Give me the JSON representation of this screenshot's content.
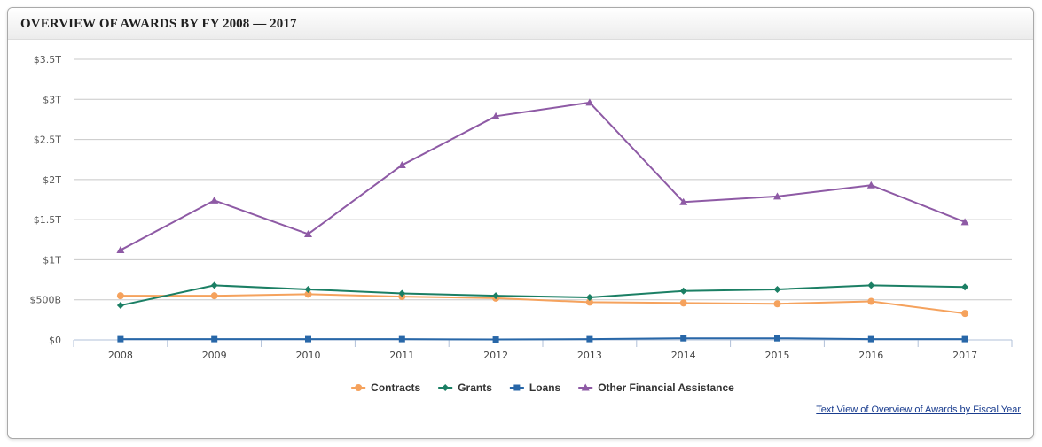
{
  "header": {
    "title": "OVERVIEW OF AWARDS BY FY 2008 — 2017"
  },
  "links": {
    "text_view": "Text View of Overview of Awards by Fiscal Year"
  },
  "chart_data": {
    "type": "line",
    "title": "",
    "xlabel": "",
    "ylabel": "",
    "categories": [
      "2008",
      "2009",
      "2010",
      "2011",
      "2012",
      "2013",
      "2014",
      "2015",
      "2016",
      "2017"
    ],
    "ylim": [
      0,
      3.5
    ],
    "y_unit": "trillions of dollars",
    "y_ticks": [
      {
        "value": 0,
        "label": "$0"
      },
      {
        "value": 0.5,
        "label": "$500B"
      },
      {
        "value": 1,
        "label": "$1T"
      },
      {
        "value": 1.5,
        "label": "$1.5T"
      },
      {
        "value": 2,
        "label": "$2T"
      },
      {
        "value": 2.5,
        "label": "$2.5T"
      },
      {
        "value": 3,
        "label": "$3T"
      },
      {
        "value": 3.5,
        "label": "$3.5T"
      }
    ],
    "grid": true,
    "legend_position": "bottom-center",
    "series": [
      {
        "name": "Contracts",
        "color": "#f5a25d",
        "marker": "circle",
        "values": [
          0.55,
          0.55,
          0.57,
          0.54,
          0.52,
          0.47,
          0.46,
          0.45,
          0.48,
          0.33
        ]
      },
      {
        "name": "Grants",
        "color": "#1b7f64",
        "marker": "diamond",
        "values": [
          0.43,
          0.68,
          0.63,
          0.58,
          0.55,
          0.53,
          0.61,
          0.63,
          0.68,
          0.66
        ]
      },
      {
        "name": "Loans",
        "color": "#2867a8",
        "marker": "square",
        "values": [
          0.01,
          0.01,
          0.01,
          0.01,
          0.005,
          0.01,
          0.02,
          0.02,
          0.01,
          0.01
        ]
      },
      {
        "name": "Other Financial Assistance",
        "color": "#8e5aa5",
        "marker": "triangle",
        "values": [
          1.12,
          1.74,
          1.32,
          2.18,
          2.79,
          2.96,
          1.72,
          1.79,
          1.93,
          1.47
        ]
      }
    ]
  }
}
